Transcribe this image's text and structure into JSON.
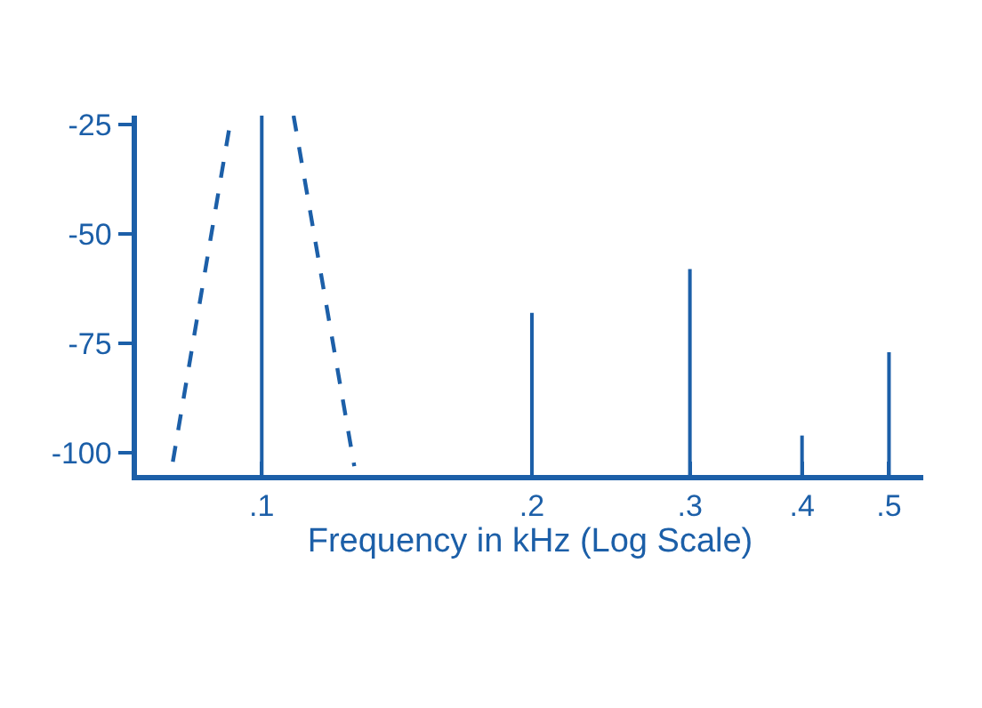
{
  "chart_data": {
    "type": "bar",
    "xlabel": "Frequency in kHz (Log Scale)",
    "log": "x",
    "x": [
      0.1,
      0.2,
      0.3,
      0.4,
      0.5
    ],
    "xlim": [
      0.0726,
      0.546
    ],
    "xticks": [
      {
        "value": 0.1,
        "label": ".1"
      },
      {
        "value": 0.2,
        "label": ".2"
      },
      {
        "value": 0.3,
        "label": ".3"
      },
      {
        "value": 0.4,
        "label": ".4"
      },
      {
        "value": 0.5,
        "label": ".5"
      }
    ],
    "ylim": [
      -105,
      -23
    ],
    "yticks": [
      -100,
      -75,
      -50,
      -25
    ],
    "series": [
      {
        "color": "#1c5fa8",
        "base": [
          -105,
          -105,
          -105,
          -105,
          -105
        ],
        "values": [
          82,
          37,
          47,
          9,
          28
        ]
      },
      {
        "type": "line",
        "line_style": "dashed",
        "color": "#1c5fa8",
        "x": [
          0.0796,
          0.0925
        ],
        "values": [
          -102,
          -23
        ]
      },
      {
        "type": "line",
        "line_style": "dashed",
        "color": "#1c5fa8",
        "x": [
          0.1085,
          0.1268
        ],
        "values": [
          -23,
          -103
        ]
      }
    ]
  }
}
